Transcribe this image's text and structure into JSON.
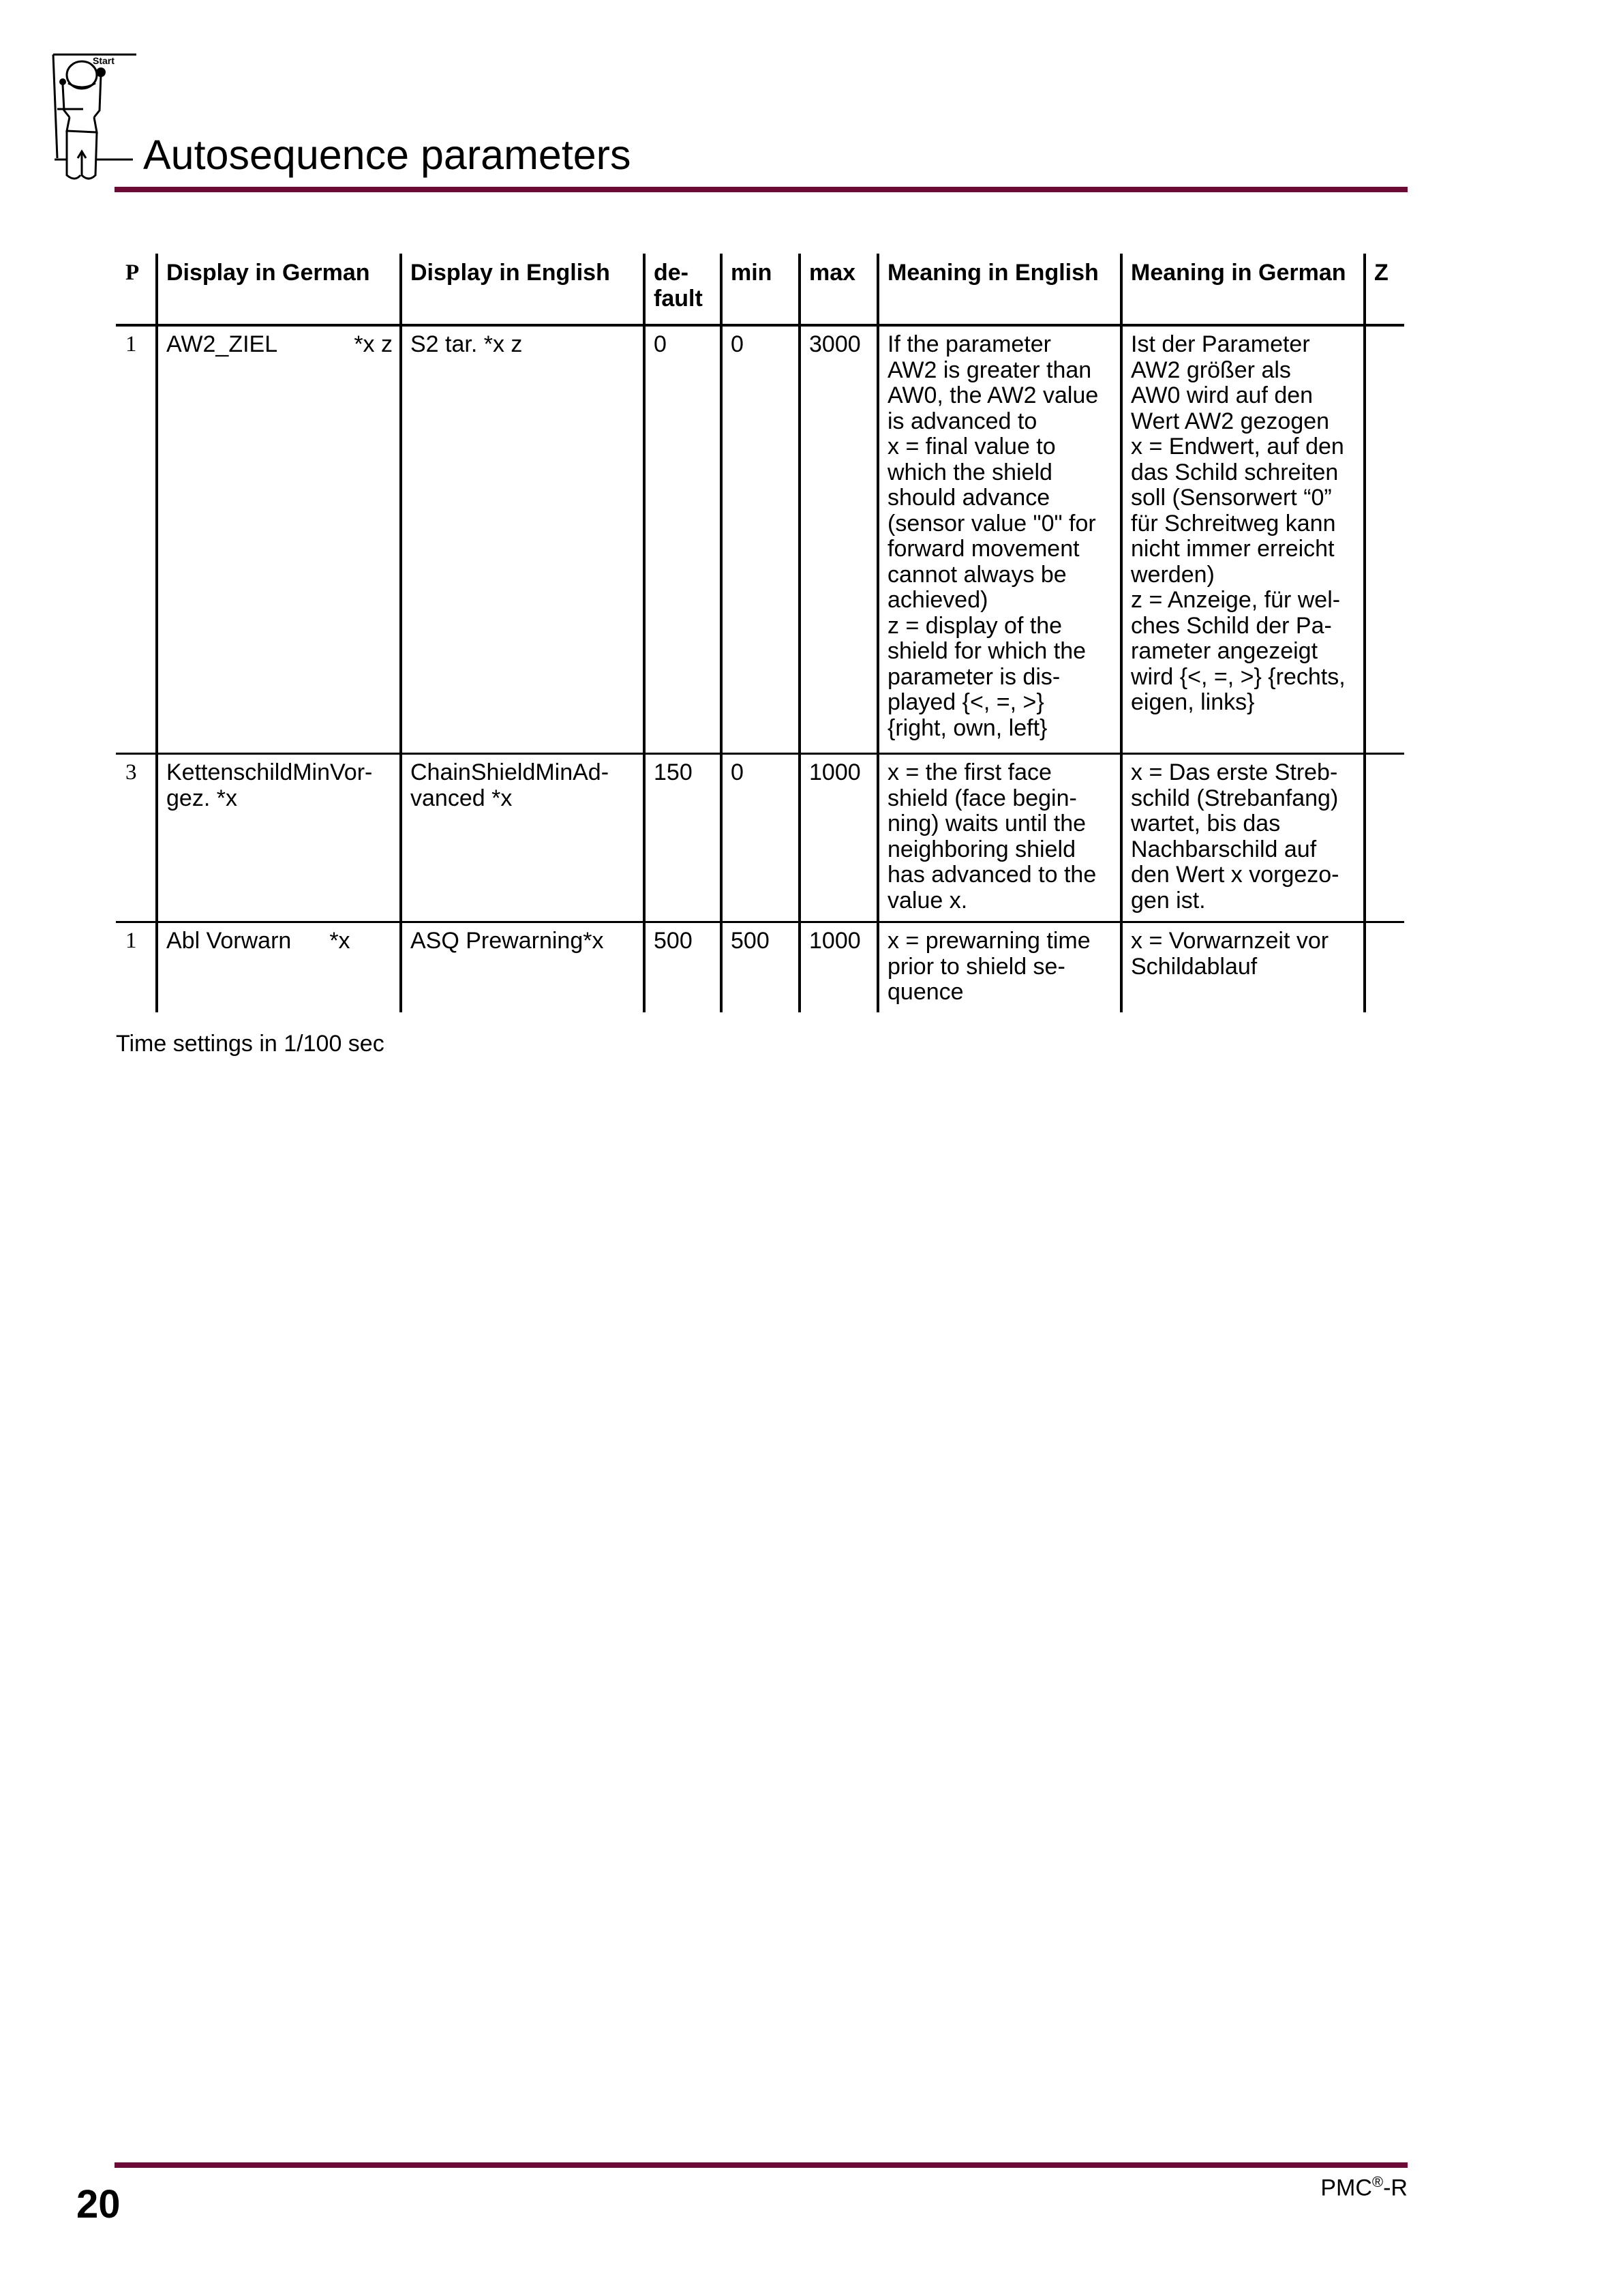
{
  "header": {
    "title": "Autosequence parameters",
    "logo_text": "Start",
    "accent_color": "#6e0a35"
  },
  "table": {
    "columns": [
      "P",
      "Display in German",
      "Display in English",
      "de-\nfault",
      "min",
      "max",
      "Meaning in English",
      "Meaning in German",
      "Z"
    ],
    "rows": [
      {
        "p": "1",
        "display_de": "AW2_ZIEL",
        "display_de_suffix": "*x z",
        "display_en": "S2 tar. *x z",
        "default": "0",
        "min": "0",
        "max": "3000",
        "meaning_en": "If the parameter\nAW2 is greater than\nAW0, the AW2 value\nis advanced to\nx = final value to\nwhich the shield\nshould advance\n(sensor value \"0\" for\nforward movement\ncannot always be\nachieved)\nz = display of the\nshield for which the\nparameter is dis-\nplayed {<, =, >}\n{right, own, left}",
        "meaning_de": "Ist der Parameter\nAW2 größer als\nAW0 wird auf den\nWert AW2 gezogen\nx = Endwert, auf den\ndas Schild schreiten\nsoll (Sensorwert “0”\nfür Schreitweg kann\nnicht immer erreicht\nwerden)\nz = Anzeige, für wel-\nches Schild der Pa-\nrameter angezeigt\nwird {<, =, >} {rechts,\neigen, links}",
        "z": ""
      },
      {
        "p": "3",
        "display_de": "KettenschildMinVor-\ngez. *x",
        "display_de_suffix": "",
        "display_en": "ChainShieldMinAd-\nvanced *x",
        "default": "150",
        "min": "0",
        "max": "1000",
        "meaning_en": "x = the first face\nshield (face begin-\nning) waits until the\nneighboring shield\nhas advanced to the\nvalue x.",
        "meaning_de": "x = Das erste Streb-\nschild (Strebanfang)\nwartet, bis das\nNachbarschild auf\nden Wert x vorgezo-\ngen ist.",
        "z": ""
      },
      {
        "p": "1",
        "display_de": "Abl Vorwarn",
        "display_de_suffix": "*x",
        "display_en": "ASQ Prewarning*x",
        "default": "500",
        "min": "500",
        "max": "1000",
        "meaning_en": "x = prewarning time\nprior to shield se-\nquence",
        "meaning_de": "x = Vorwarnzeit vor\nSchildablauf",
        "z": ""
      }
    ]
  },
  "note": "Time settings in 1/100 sec",
  "footer": {
    "page_number": "20",
    "product": "PMC",
    "product_mark": "®",
    "product_suffix": "-R"
  }
}
